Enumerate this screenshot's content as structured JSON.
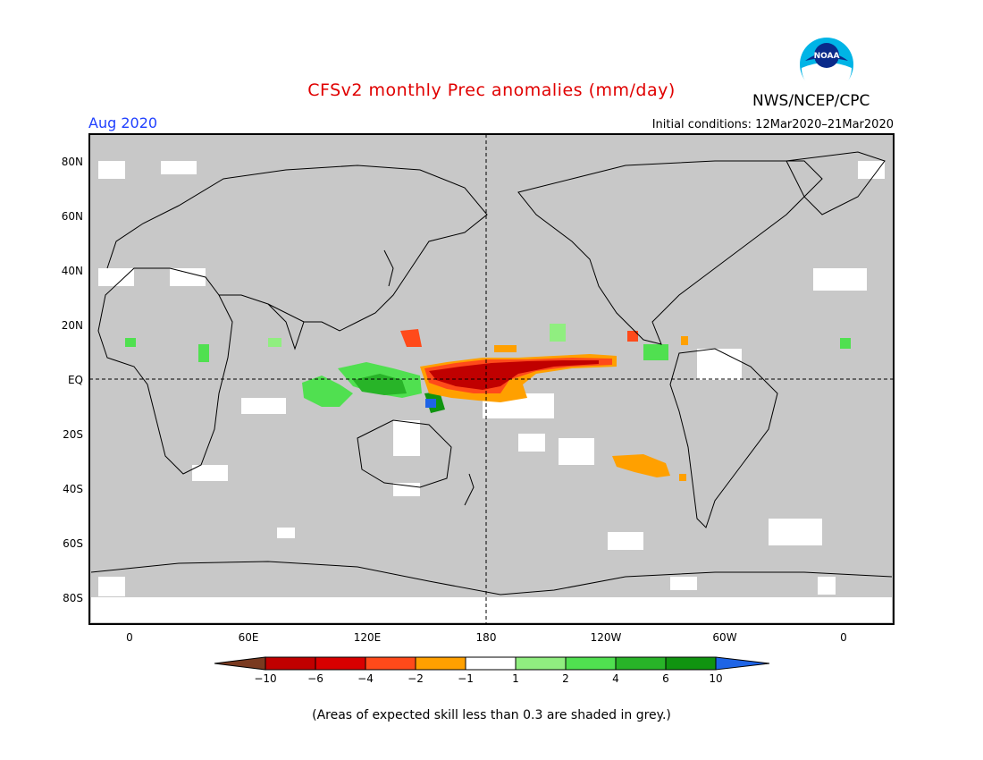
{
  "header": {
    "title": "CFSv2 monthly Prec anomalies (mm/day)",
    "month": "Aug 2020",
    "initial_conditions": "Initial conditions: 12Mar2020–21Mar2020",
    "agency": "NWS/NCEP/CPC",
    "logo_text": "NOAA"
  },
  "map": {
    "lat_labels": [
      "80N",
      "60N",
      "40N",
      "20N",
      "EQ",
      "20S",
      "40S",
      "60S",
      "80S"
    ],
    "lon_labels": [
      "0",
      "60E",
      "120E",
      "180",
      "120W",
      "60W",
      "0"
    ]
  },
  "colorbar": {
    "labels": [
      "-10",
      "-6",
      "-4",
      "-2",
      "-1",
      "1",
      "2",
      "4",
      "6",
      "10"
    ],
    "colors": [
      "#7a3a20",
      "#c00000",
      "#d80000",
      "#ff4a1a",
      "#ffa000",
      "#ffffff",
      "#90ee80",
      "#50e050",
      "#28b428",
      "#109410",
      "#1e64e6"
    ]
  },
  "footnote": "(Areas of expected skill less than 0.3 are shaded in grey.)",
  "colors": {
    "grey_skill": "#c8c8c8",
    "title_red": "#e00000",
    "month_blue": "#2040ff"
  }
}
